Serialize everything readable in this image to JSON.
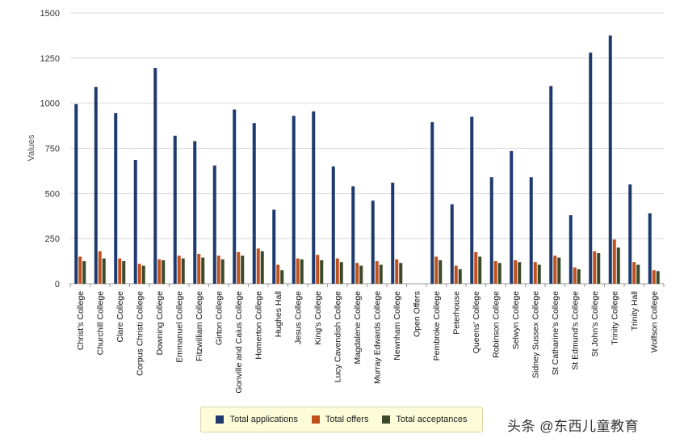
{
  "chart_data": {
    "type": "bar",
    "title": "",
    "xlabel": "",
    "ylabel": "Values",
    "ylim": [
      0,
      1500
    ],
    "yticks": [
      0,
      250,
      500,
      750,
      1000,
      1250,
      1500
    ],
    "grid": true,
    "legend_position": "bottom-center",
    "categories": [
      "Christ's College",
      "Churchill College",
      "Clare College",
      "Corpus Christi College",
      "Downing College",
      "Emmanuel College",
      "Fitzwilliam College",
      "Girton College",
      "Gonville and Caius College",
      "Homerton College",
      "Hughes Hall",
      "Jesus College",
      "King's College",
      "Lucy Cavendish College",
      "Magdalene College",
      "Murray Edwards College",
      "Newnham College",
      "Open Offers",
      "Pembroke College",
      "Peterhouse",
      "Queens' College",
      "Robinson College",
      "Selwyn College",
      "Sidney Sussex College",
      "St Catharine's College",
      "St Edmund's College",
      "St John's College",
      "Trinity College",
      "Trinity Hall",
      "Wolfson College"
    ],
    "series": [
      {
        "name": "Total applications",
        "color": "#1f3a6e",
        "values": [
          995,
          1090,
          945,
          685,
          1195,
          820,
          790,
          655,
          965,
          890,
          410,
          930,
          955,
          650,
          540,
          460,
          560,
          0,
          895,
          440,
          925,
          590,
          735,
          590,
          1095,
          380,
          1280,
          1375,
          550,
          390
        ]
      },
      {
        "name": "Total offers",
        "color": "#c0501e",
        "values": [
          150,
          180,
          140,
          110,
          135,
          155,
          165,
          155,
          175,
          195,
          105,
          140,
          160,
          140,
          115,
          125,
          135,
          0,
          150,
          100,
          175,
          125,
          130,
          120,
          155,
          90,
          180,
          245,
          120,
          75
        ]
      },
      {
        "name": "Total acceptances",
        "color": "#3c4a2a",
        "values": [
          125,
          140,
          125,
          100,
          130,
          140,
          145,
          135,
          155,
          180,
          75,
          135,
          130,
          120,
          100,
          105,
          115,
          0,
          130,
          80,
          150,
          115,
          120,
          105,
          145,
          80,
          170,
          200,
          105,
          70
        ]
      }
    ]
  },
  "legend": {
    "items": [
      {
        "label": "Total applications",
        "color": "#1f3a6e"
      },
      {
        "label": "Total offers",
        "color": "#c0501e"
      },
      {
        "label": "Total acceptances",
        "color": "#3c4a2a"
      }
    ]
  },
  "watermark": "头条 @东西儿童教育"
}
